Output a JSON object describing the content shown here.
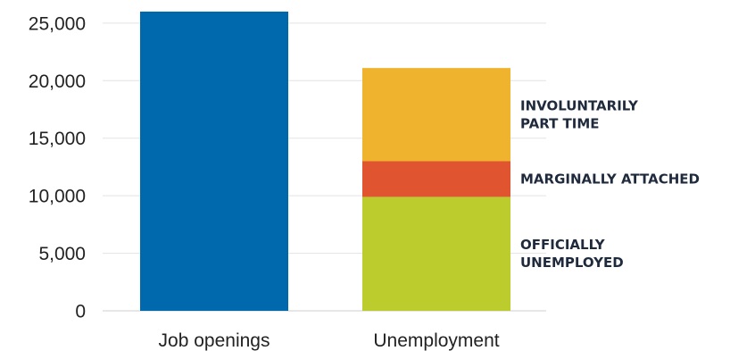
{
  "chart_data": {
    "type": "bar",
    "stacked": true,
    "categories": [
      "Job openings",
      "Unemployment"
    ],
    "y_ticks": [
      "0",
      "5,000",
      "10,000",
      "15,000",
      "20,000",
      "25,000"
    ],
    "ylim": [
      0,
      26000
    ],
    "grid": true,
    "series": [
      {
        "name": "",
        "color": "#0068ad",
        "values": [
          26000,
          0
        ]
      },
      {
        "name": "OFFICIALLY UNEMPLOYED",
        "label_lines": [
          "OFFICIALLY",
          "UNEMPLOYED"
        ],
        "color": "#bccc2c",
        "values": [
          0,
          9900
        ]
      },
      {
        "name": "MARGINALLY ATTACHED",
        "label_lines": [
          "MARGINALLY ATTACHED"
        ],
        "color": "#e05430",
        "values": [
          0,
          3100
        ]
      },
      {
        "name": "INVOLUNTARILY PART TIME",
        "label_lines": [
          "INVOLUNTARILY",
          "PART TIME"
        ],
        "color": "#f0b32e",
        "values": [
          0,
          8100
        ]
      }
    ]
  }
}
